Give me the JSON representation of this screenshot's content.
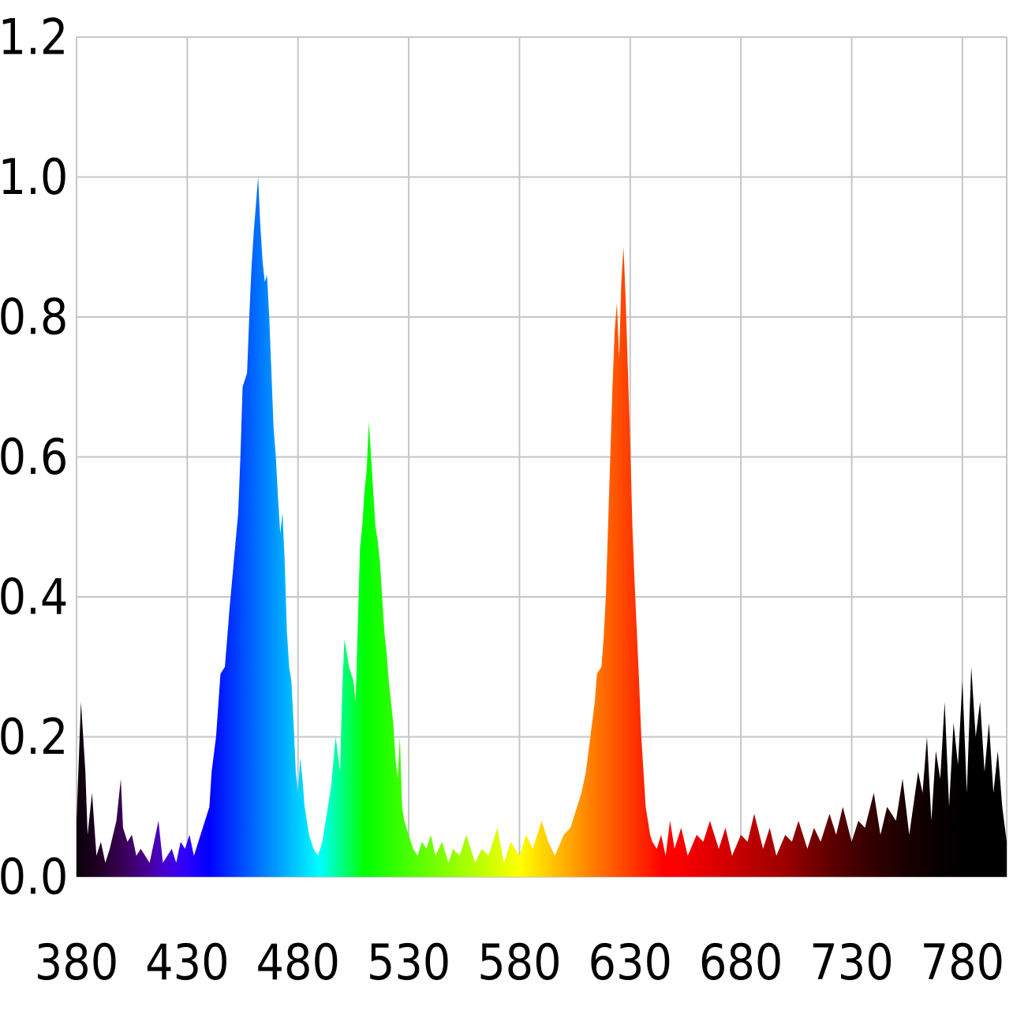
{
  "chart_data": {
    "type": "area",
    "title": "",
    "xlabel": "",
    "ylabel": "",
    "xlim": [
      380,
      800
    ],
    "ylim": [
      0,
      1.2
    ],
    "grid": true,
    "x_ticks": [
      380,
      430,
      480,
      530,
      580,
      630,
      680,
      730,
      780
    ],
    "x_tick_labels": [
      "380",
      "430",
      "480",
      "530",
      "580",
      "630",
      "680",
      "730",
      "780"
    ],
    "y_ticks": [
      0,
      0.2,
      0.4,
      0.6,
      0.8,
      1.0,
      1.2
    ],
    "y_tick_labels": [
      "0.0",
      "0.2",
      "0.4",
      "0.6",
      "0.8",
      "1.0",
      "1.2"
    ],
    "fill": "wavelength spectrum colors",
    "series": [
      {
        "x": [
          380,
          382,
          384,
          385,
          387,
          389,
          391,
          393,
          395,
          398,
          400,
          401,
          403,
          405,
          407,
          409,
          411,
          413,
          415,
          417,
          419,
          421,
          423,
          425,
          427,
          429,
          431,
          433,
          435,
          437,
          440,
          441,
          443,
          445,
          447,
          449,
          451,
          453,
          454,
          455,
          457,
          458,
          459,
          460,
          461,
          462,
          463,
          464,
          465,
          466,
          467,
          468,
          469,
          470,
          471,
          472,
          473,
          474,
          475,
          476,
          477,
          478,
          479,
          480,
          481,
          482,
          483,
          484,
          485,
          487,
          489,
          491,
          493,
          495,
          497,
          499,
          500,
          501,
          503,
          505,
          506,
          507,
          508,
          509,
          510,
          511,
          512,
          513,
          514,
          515,
          516,
          517,
          518,
          519,
          520,
          521,
          522,
          523,
          524,
          525,
          526,
          527,
          528,
          530,
          532,
          534,
          536,
          538,
          540,
          542,
          545,
          548,
          550,
          553,
          556,
          560,
          563,
          566,
          570,
          573,
          576,
          578,
          580,
          583,
          586,
          590,
          593,
          596,
          600,
          603,
          606,
          608,
          610,
          612,
          614,
          615,
          617,
          618,
          619,
          620,
          621,
          622,
          623,
          624,
          625,
          626,
          627,
          628,
          629,
          630,
          631,
          632,
          633,
          634,
          635,
          636,
          637,
          638,
          639,
          640,
          642,
          644,
          646,
          648,
          650,
          653,
          656,
          660,
          663,
          666,
          670,
          673,
          676,
          680,
          683,
          686,
          690,
          693,
          696,
          700,
          703,
          706,
          710,
          713,
          716,
          720,
          723,
          726,
          730,
          733,
          736,
          740,
          743,
          746,
          750,
          753,
          756,
          760,
          762,
          764,
          766,
          768,
          770,
          772,
          774,
          776,
          778,
          780,
          782,
          784,
          786,
          788,
          790,
          792,
          794,
          796,
          798,
          800
        ],
        "y": [
          0.08,
          0.25,
          0.15,
          0.06,
          0.12,
          0.03,
          0.05,
          0.02,
          0.04,
          0.08,
          0.14,
          0.07,
          0.05,
          0.06,
          0.03,
          0.04,
          0.03,
          0.02,
          0.05,
          0.08,
          0.02,
          0.03,
          0.04,
          0.02,
          0.05,
          0.04,
          0.06,
          0.03,
          0.05,
          0.07,
          0.1,
          0.15,
          0.2,
          0.29,
          0.3,
          0.38,
          0.45,
          0.52,
          0.6,
          0.7,
          0.72,
          0.8,
          0.87,
          0.92,
          0.96,
          1.0,
          0.93,
          0.88,
          0.85,
          0.86,
          0.8,
          0.72,
          0.64,
          0.6,
          0.54,
          0.49,
          0.52,
          0.45,
          0.35,
          0.3,
          0.28,
          0.22,
          0.15,
          0.12,
          0.17,
          0.14,
          0.1,
          0.08,
          0.06,
          0.04,
          0.03,
          0.05,
          0.09,
          0.13,
          0.2,
          0.15,
          0.27,
          0.34,
          0.3,
          0.28,
          0.25,
          0.36,
          0.47,
          0.5,
          0.55,
          0.58,
          0.65,
          0.6,
          0.55,
          0.5,
          0.48,
          0.45,
          0.4,
          0.35,
          0.32,
          0.28,
          0.25,
          0.22,
          0.17,
          0.14,
          0.2,
          0.1,
          0.08,
          0.06,
          0.04,
          0.03,
          0.05,
          0.04,
          0.06,
          0.03,
          0.05,
          0.02,
          0.04,
          0.03,
          0.06,
          0.02,
          0.04,
          0.03,
          0.07,
          0.02,
          0.05,
          0.04,
          0.03,
          0.06,
          0.04,
          0.08,
          0.05,
          0.03,
          0.06,
          0.07,
          0.1,
          0.12,
          0.15,
          0.2,
          0.25,
          0.29,
          0.3,
          0.34,
          0.4,
          0.5,
          0.6,
          0.7,
          0.78,
          0.82,
          0.74,
          0.85,
          0.9,
          0.82,
          0.72,
          0.62,
          0.5,
          0.42,
          0.35,
          0.28,
          0.2,
          0.15,
          0.1,
          0.08,
          0.06,
          0.05,
          0.04,
          0.06,
          0.03,
          0.08,
          0.04,
          0.07,
          0.03,
          0.06,
          0.05,
          0.08,
          0.04,
          0.07,
          0.03,
          0.06,
          0.05,
          0.09,
          0.04,
          0.07,
          0.03,
          0.06,
          0.05,
          0.08,
          0.04,
          0.07,
          0.05,
          0.09,
          0.06,
          0.1,
          0.05,
          0.08,
          0.07,
          0.12,
          0.06,
          0.1,
          0.08,
          0.14,
          0.06,
          0.15,
          0.12,
          0.2,
          0.08,
          0.18,
          0.14,
          0.25,
          0.1,
          0.22,
          0.16,
          0.28,
          0.12,
          0.3,
          0.2,
          0.25,
          0.15,
          0.22,
          0.12,
          0.18,
          0.1,
          0.05
        ]
      }
    ]
  }
}
